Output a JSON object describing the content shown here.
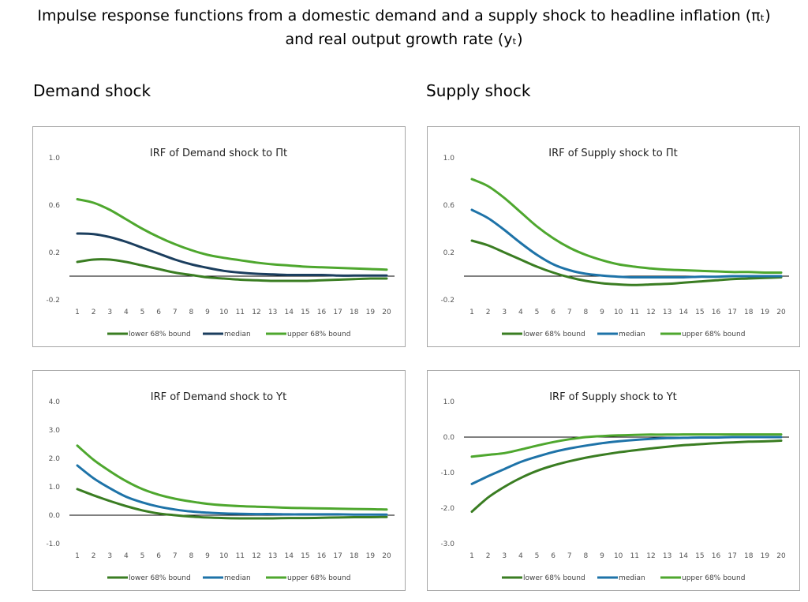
{
  "figure": {
    "title_line1": "Impulse response functions from a domestic demand and a supply shock to headline inflation (πₜ)",
    "title_line2": "and real output growth rate (yₜ)",
    "left_heading": "Demand shock",
    "right_heading": "Supply shock"
  },
  "colors": {
    "lower": "#3a7d22",
    "median_dark": "#1b3e5e",
    "median": "#1e73a8",
    "upper": "#4ea72e",
    "zero_line": "#000000"
  },
  "chart_data": [
    {
      "type": "line",
      "title": "IRF of Demand shock to Πt",
      "x": [
        1,
        2,
        3,
        4,
        5,
        6,
        7,
        8,
        9,
        10,
        11,
        12,
        13,
        14,
        15,
        16,
        17,
        18,
        19,
        20
      ],
      "ylim": [
        -0.2,
        1.0
      ],
      "yticks": [
        "1.0",
        "0.6",
        "0.2",
        "-0.2"
      ],
      "ytick_values": [
        1.0,
        0.6,
        0.2,
        -0.2
      ],
      "series": [
        {
          "name": "lower 68% bound",
          "color": "#3a7d22",
          "values": [
            0.12,
            0.14,
            0.14,
            0.12,
            0.09,
            0.06,
            0.03,
            0.01,
            -0.01,
            -0.02,
            -0.03,
            -0.035,
            -0.04,
            -0.04,
            -0.04,
            -0.035,
            -0.03,
            -0.025,
            -0.02,
            -0.02
          ]
        },
        {
          "name": "median",
          "color": "#1b3e5e",
          "values": [
            0.36,
            0.355,
            0.33,
            0.29,
            0.24,
            0.19,
            0.14,
            0.1,
            0.07,
            0.045,
            0.03,
            0.02,
            0.015,
            0.01,
            0.01,
            0.01,
            0.005,
            0.005,
            0.005,
            0.005
          ]
        },
        {
          "name": "upper 68% bound",
          "color": "#4ea72e",
          "values": [
            0.65,
            0.62,
            0.56,
            0.48,
            0.4,
            0.33,
            0.27,
            0.22,
            0.18,
            0.155,
            0.135,
            0.115,
            0.1,
            0.09,
            0.08,
            0.075,
            0.07,
            0.065,
            0.06,
            0.055
          ]
        }
      ],
      "legend": [
        "lower 68% bound",
        "median",
        "upper 68% bound"
      ]
    },
    {
      "type": "line",
      "title": "IRF of Supply shock to Πt",
      "x": [
        1,
        2,
        3,
        4,
        5,
        6,
        7,
        8,
        9,
        10,
        11,
        12,
        13,
        14,
        15,
        16,
        17,
        18,
        19,
        20
      ],
      "ylim": [
        -0.2,
        1.0
      ],
      "yticks": [
        "1.0",
        "0.6",
        "0.2",
        "-0.2"
      ],
      "ytick_values": [
        1.0,
        0.6,
        0.2,
        -0.2
      ],
      "series": [
        {
          "name": "lower 68% bound",
          "color": "#3a7d22",
          "values": [
            0.3,
            0.26,
            0.2,
            0.14,
            0.08,
            0.03,
            -0.01,
            -0.04,
            -0.06,
            -0.07,
            -0.075,
            -0.07,
            -0.065,
            -0.055,
            -0.045,
            -0.035,
            -0.025,
            -0.02,
            -0.015,
            -0.01
          ]
        },
        {
          "name": "median",
          "color": "#1e73a8",
          "values": [
            0.56,
            0.49,
            0.39,
            0.28,
            0.18,
            0.1,
            0.05,
            0.02,
            0.005,
            -0.005,
            -0.01,
            -0.01,
            -0.01,
            -0.01,
            -0.005,
            -0.005,
            0.0,
            0.0,
            0.0,
            0.0
          ]
        },
        {
          "name": "upper 68% bound",
          "color": "#4ea72e",
          "values": [
            0.82,
            0.76,
            0.66,
            0.54,
            0.42,
            0.32,
            0.24,
            0.18,
            0.135,
            0.1,
            0.08,
            0.065,
            0.055,
            0.05,
            0.045,
            0.04,
            0.035,
            0.035,
            0.03,
            0.03
          ]
        }
      ],
      "legend": [
        "lower 68% bound",
        "median",
        "upper 68% bound"
      ]
    },
    {
      "type": "line",
      "title": "IRF of Demand shock to Yt",
      "x": [
        1,
        2,
        3,
        4,
        5,
        6,
        7,
        8,
        9,
        10,
        11,
        12,
        13,
        14,
        15,
        16,
        17,
        18,
        19,
        20
      ],
      "ylim": [
        -1.0,
        4.0
      ],
      "yticks": [
        "4.0",
        "3.0",
        "2.0",
        "1.0",
        "0.0",
        "-1.0"
      ],
      "ytick_values": [
        4.0,
        3.0,
        2.0,
        1.0,
        0.0,
        -1.0
      ],
      "series": [
        {
          "name": "lower 68% bound",
          "color": "#3a7d22",
          "values": [
            0.92,
            0.7,
            0.5,
            0.32,
            0.17,
            0.06,
            0.0,
            -0.05,
            -0.08,
            -0.1,
            -0.11,
            -0.11,
            -0.11,
            -0.1,
            -0.1,
            -0.09,
            -0.08,
            -0.07,
            -0.07,
            -0.06
          ]
        },
        {
          "name": "median",
          "color": "#1e73a8",
          "values": [
            1.75,
            1.3,
            0.95,
            0.65,
            0.45,
            0.3,
            0.2,
            0.13,
            0.09,
            0.06,
            0.05,
            0.04,
            0.04,
            0.03,
            0.03,
            0.03,
            0.03,
            0.02,
            0.02,
            0.02
          ]
        },
        {
          "name": "upper 68% bound",
          "color": "#4ea72e",
          "values": [
            2.45,
            1.95,
            1.55,
            1.2,
            0.92,
            0.72,
            0.58,
            0.48,
            0.4,
            0.35,
            0.32,
            0.3,
            0.28,
            0.26,
            0.25,
            0.24,
            0.23,
            0.22,
            0.21,
            0.2
          ]
        }
      ],
      "legend": [
        "lower 68% bound",
        "median",
        "upper 68% bound"
      ]
    },
    {
      "type": "line",
      "title": "IRF of Supply shock to Yt",
      "x": [
        1,
        2,
        3,
        4,
        5,
        6,
        7,
        8,
        9,
        10,
        11,
        12,
        13,
        14,
        15,
        16,
        17,
        18,
        19,
        20
      ],
      "ylim": [
        -3.0,
        1.0
      ],
      "yticks": [
        "1.0",
        "0.0",
        "-1.0",
        "-2.0",
        "-3.0"
      ],
      "ytick_values": [
        1.0,
        0.0,
        -1.0,
        -2.0,
        -3.0
      ],
      "series": [
        {
          "name": "lower 68% bound",
          "color": "#3a7d22",
          "values": [
            -2.1,
            -1.7,
            -1.4,
            -1.15,
            -0.95,
            -0.8,
            -0.68,
            -0.58,
            -0.5,
            -0.43,
            -0.37,
            -0.32,
            -0.27,
            -0.23,
            -0.2,
            -0.17,
            -0.15,
            -0.13,
            -0.12,
            -0.1
          ]
        },
        {
          "name": "median",
          "color": "#1e73a8",
          "values": [
            -1.32,
            -1.1,
            -0.9,
            -0.7,
            -0.55,
            -0.42,
            -0.32,
            -0.24,
            -0.17,
            -0.12,
            -0.08,
            -0.05,
            -0.03,
            -0.02,
            -0.01,
            -0.01,
            0.0,
            0.0,
            0.0,
            0.0
          ]
        },
        {
          "name": "upper 68% bound",
          "color": "#4ea72e",
          "values": [
            -0.55,
            -0.5,
            -0.45,
            -0.35,
            -0.24,
            -0.14,
            -0.06,
            0.0,
            0.03,
            0.05,
            0.06,
            0.07,
            0.07,
            0.075,
            0.075,
            0.075,
            0.075,
            0.075,
            0.075,
            0.075
          ]
        }
      ],
      "legend": [
        "lower 68% bound",
        "median",
        "upper 68% bound"
      ]
    }
  ]
}
